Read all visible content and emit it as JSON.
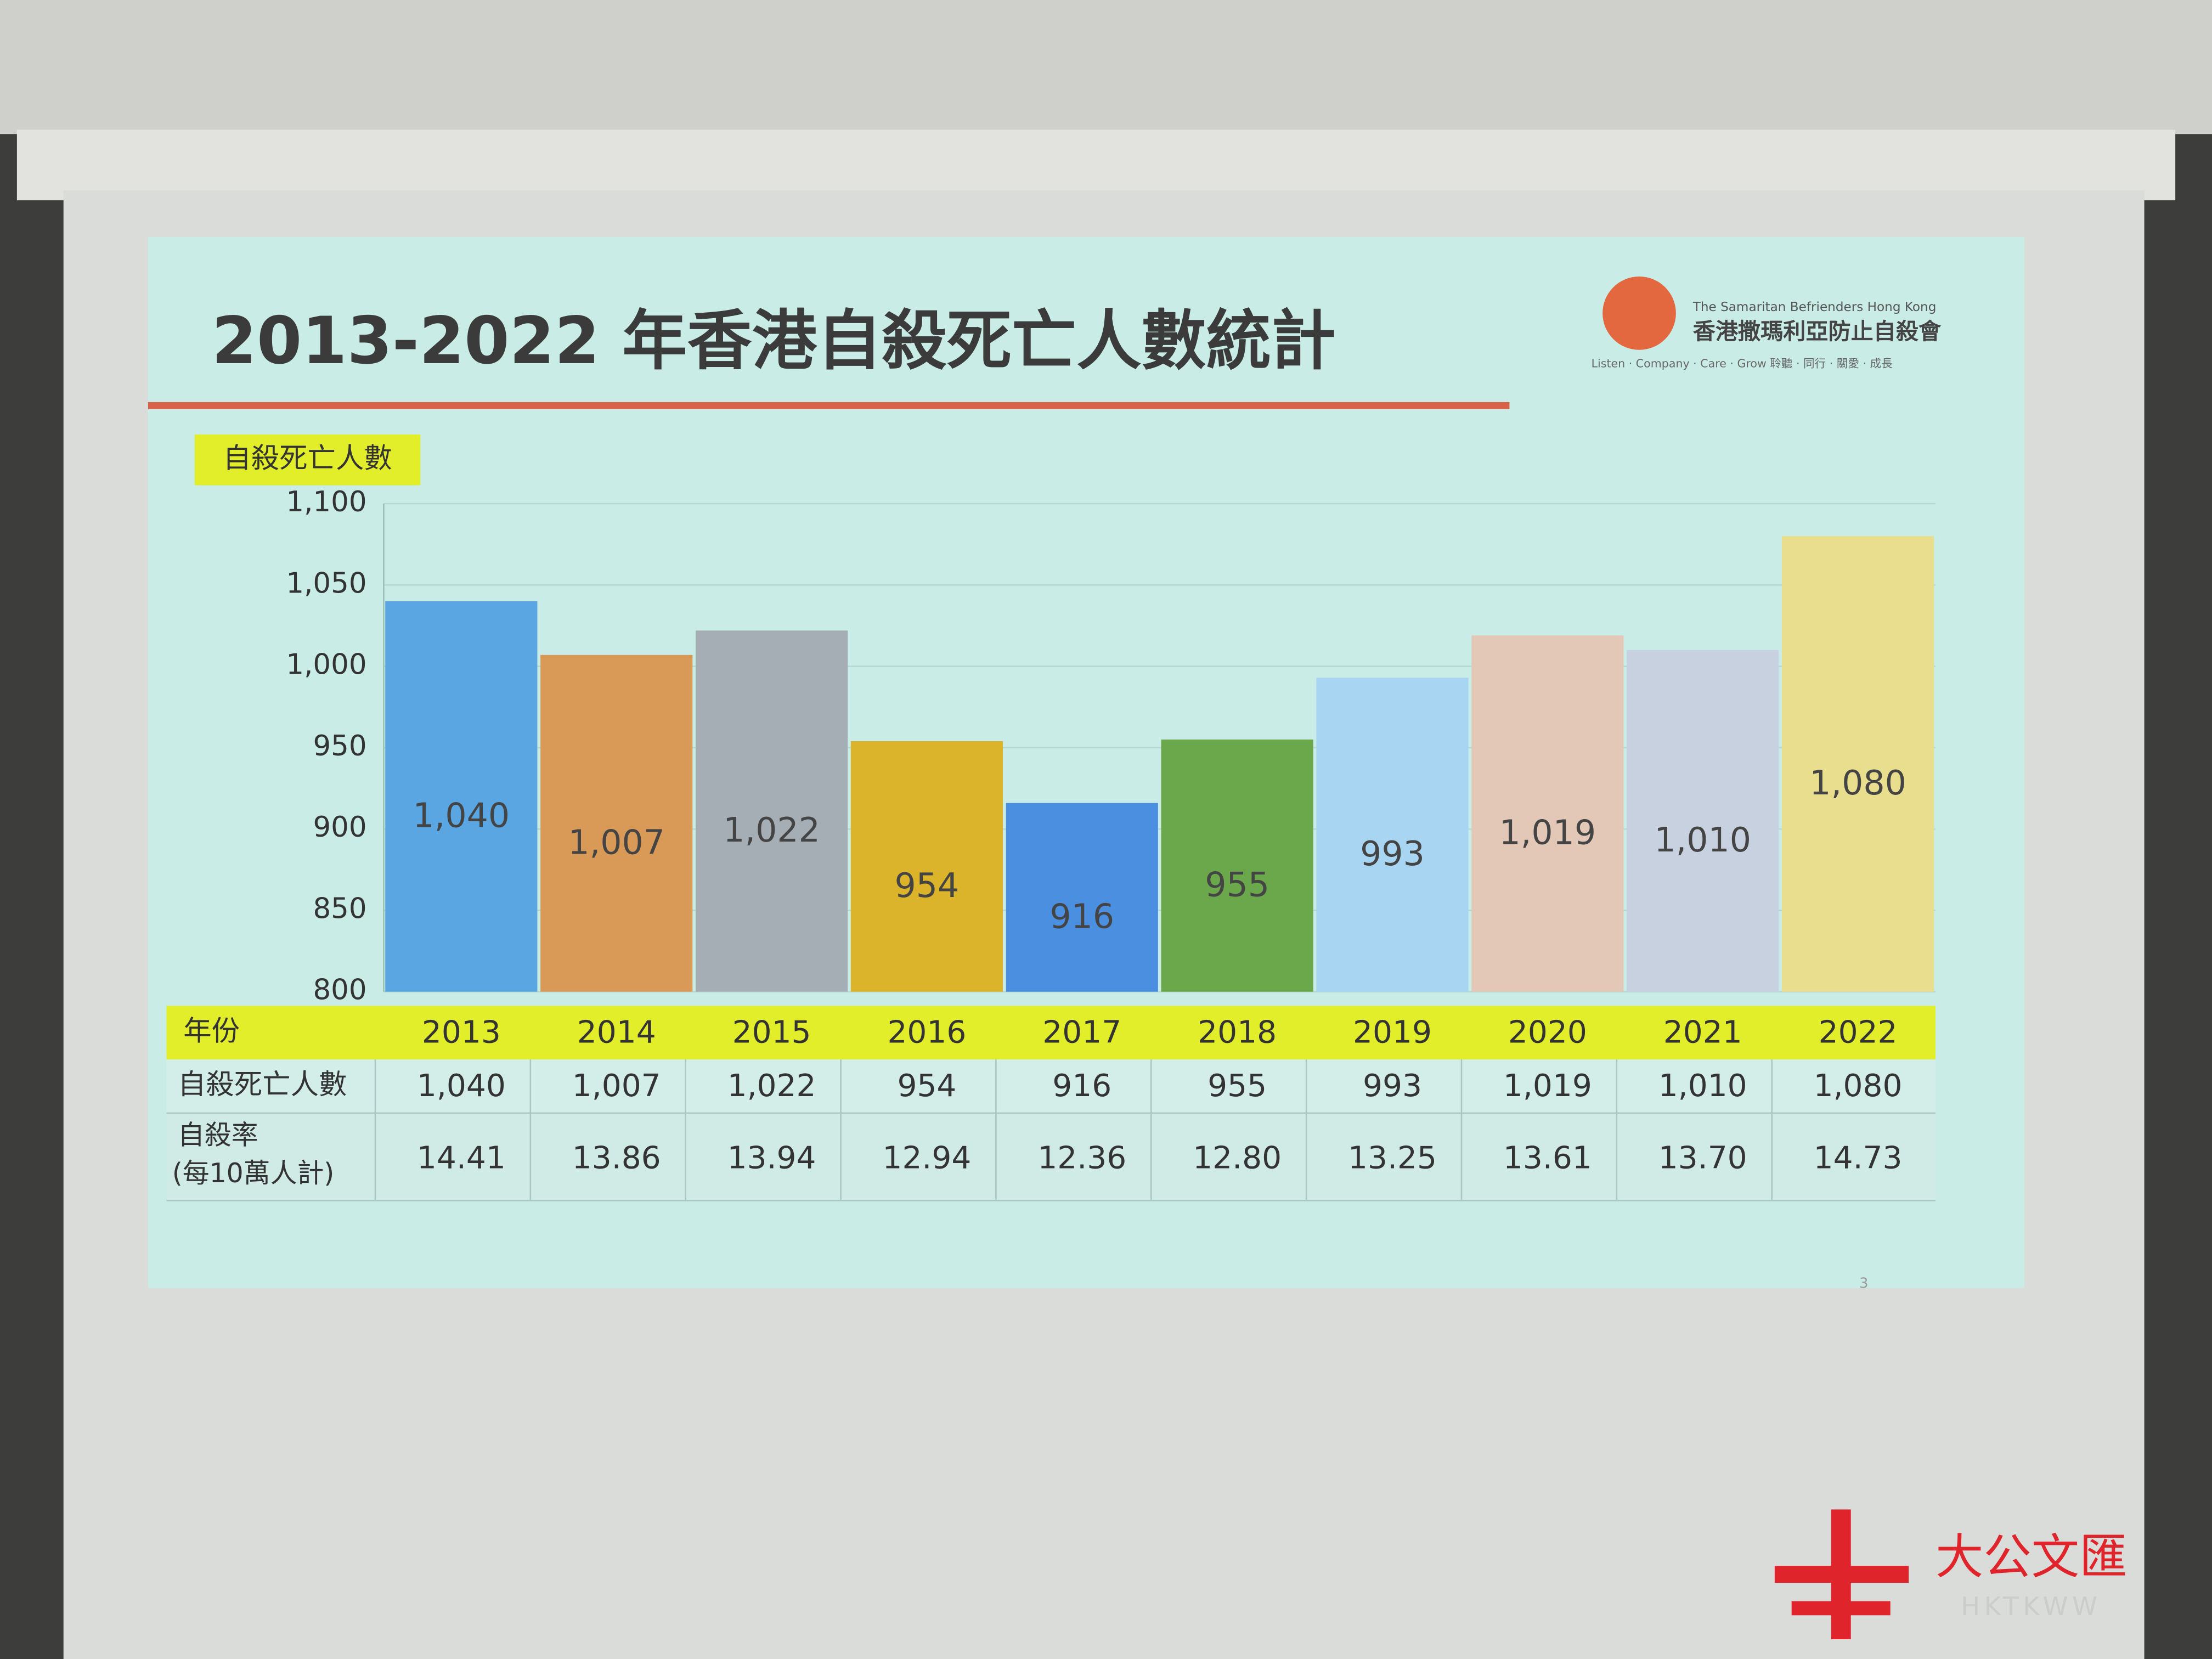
{
  "chart_data": {
    "type": "bar",
    "title": "2013-2022 年香港自殺死亡人數統計",
    "y_label": "自殺死亡人數",
    "categories": [
      "2013",
      "2014",
      "2015",
      "2016",
      "2017",
      "2018",
      "2019",
      "2020",
      "2021",
      "2022"
    ],
    "values": [
      1040,
      1007,
      1022,
      954,
      916,
      955,
      993,
      1019,
      1010,
      1080
    ],
    "value_labels": [
      "1,040",
      "1,007",
      "1,022",
      "954",
      "916",
      "955",
      "993",
      "1,019",
      "1,010",
      "1,080"
    ],
    "colors": [
      "#5aa6e2",
      "#d99a57",
      "#a4aeb4",
      "#dbb42c",
      "#4a8fe0",
      "#6aa84b",
      "#a8d6f2",
      "#e3c7b7",
      "#c8d1e0",
      "#e8de8e"
    ],
    "ylim": [
      800,
      1100
    ],
    "yticks": [
      800,
      850,
      900,
      950,
      {
        "value": 1000,
        "label": "1,000"
      },
      {
        "value": 1050,
        "label": "1,050"
      },
      {
        "value": 1100,
        "label": "1,100"
      }
    ],
    "grid": true
  },
  "table": {
    "year_header": "年份",
    "count_header": "自殺死亡人數",
    "rate_header": [
      "自殺率",
      "(每10萬人計)"
    ],
    "rates": [
      "14.41",
      "13.86",
      "13.94",
      "12.94",
      "12.36",
      "12.80",
      "13.25",
      "13.61",
      "13.70",
      "14.73"
    ]
  },
  "logo": {
    "english": "The Samaritan Befrienders Hong Kong",
    "chinese": "香港撒瑪利亞防止自殺會",
    "motto": "Listen · Company · Care · Grow  聆聽 · 同行 · 關愛 · 成長"
  },
  "page_number": "3",
  "watermark": {
    "name": "大公文匯",
    "code": "HKTKWW"
  }
}
